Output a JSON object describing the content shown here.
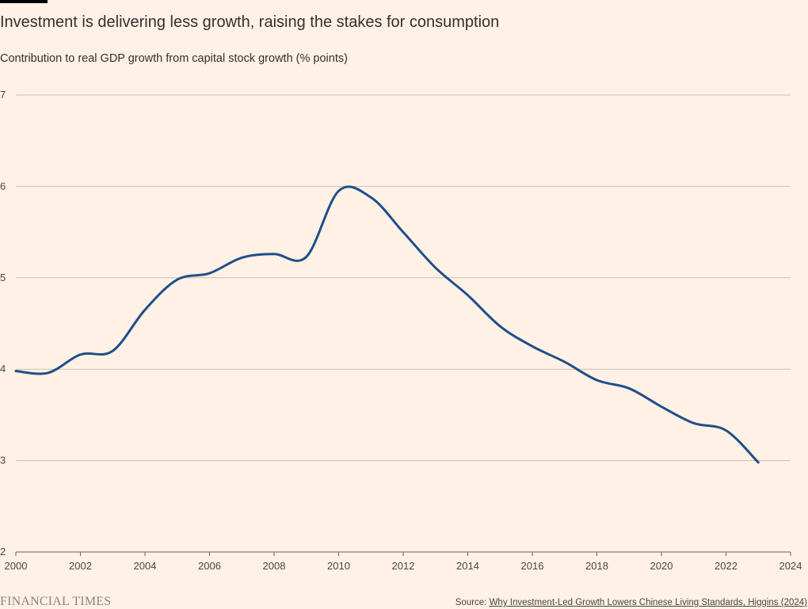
{
  "header": {
    "title": "Investment is delivering less growth, raising the stakes for consumption",
    "subtitle": "Contribution to real GDP growth from capital stock growth (% points)"
  },
  "footer": {
    "logo_text": "FINANCIAL TIMES",
    "source_prefix": "Source: ",
    "source_link_text": "Why Investment-Led Growth Lowers Chinese Living Standards, Higgins (2024)"
  },
  "colors": {
    "background": "#fff1e5",
    "line": "#1f4e89",
    "gridline": "#ccc1b7",
    "text": "#33302e"
  },
  "chart_data": {
    "type": "line",
    "title": "Investment is delivering less growth, raising the stakes for consumption",
    "subtitle": "Contribution to real GDP growth from capital stock growth (% points)",
    "xlabel": "",
    "ylabel": "",
    "xlim": [
      2000,
      2024
    ],
    "ylim": [
      2,
      7
    ],
    "x_ticks": [
      2000,
      2002,
      2004,
      2006,
      2008,
      2010,
      2012,
      2014,
      2016,
      2018,
      2020,
      2022,
      2024
    ],
    "y_ticks": [
      2,
      3,
      4,
      5,
      6,
      7
    ],
    "grid": "horizontal",
    "legend": "none",
    "series": [
      {
        "color": "#1f4e89",
        "x": [
          2000,
          2001,
          2002,
          2003,
          2004,
          2005,
          2006,
          2007,
          2008,
          2009,
          2010,
          2011,
          2012,
          2013,
          2014,
          2015,
          2016,
          2017,
          2018,
          2019,
          2020,
          2021,
          2022,
          2023
        ],
        "values": [
          3.98,
          3.96,
          4.16,
          4.2,
          4.65,
          4.98,
          5.05,
          5.22,
          5.26,
          5.23,
          5.95,
          5.88,
          5.5,
          5.11,
          4.81,
          4.47,
          4.25,
          4.08,
          3.88,
          3.79,
          3.59,
          3.41,
          3.33,
          2.98
        ]
      }
    ]
  }
}
